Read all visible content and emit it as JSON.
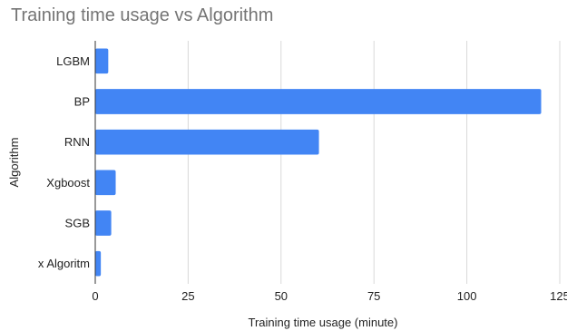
{
  "chart_data": {
    "type": "bar",
    "orientation": "horizontal",
    "title": "Training time usage vs Algorithm",
    "xlabel": "Training time usage (minute)",
    "ylabel": "Algorithm",
    "categories": [
      "LGBM",
      "BP",
      "RNN",
      "Xgboost",
      "SGB",
      "x Algoritm"
    ],
    "values": [
      3.5,
      120,
      60.2,
      5.5,
      4.3,
      1.5
    ],
    "xlim": [
      0,
      125
    ],
    "xticks": [
      "0",
      "25",
      "50",
      "75",
      "100",
      "125"
    ],
    "grid": true,
    "legend": "none",
    "colors": {
      "bar": "#4285F4",
      "grid": "#D9D9D9",
      "axis": "#333333",
      "text": "#222222",
      "title": "#757575"
    }
  }
}
